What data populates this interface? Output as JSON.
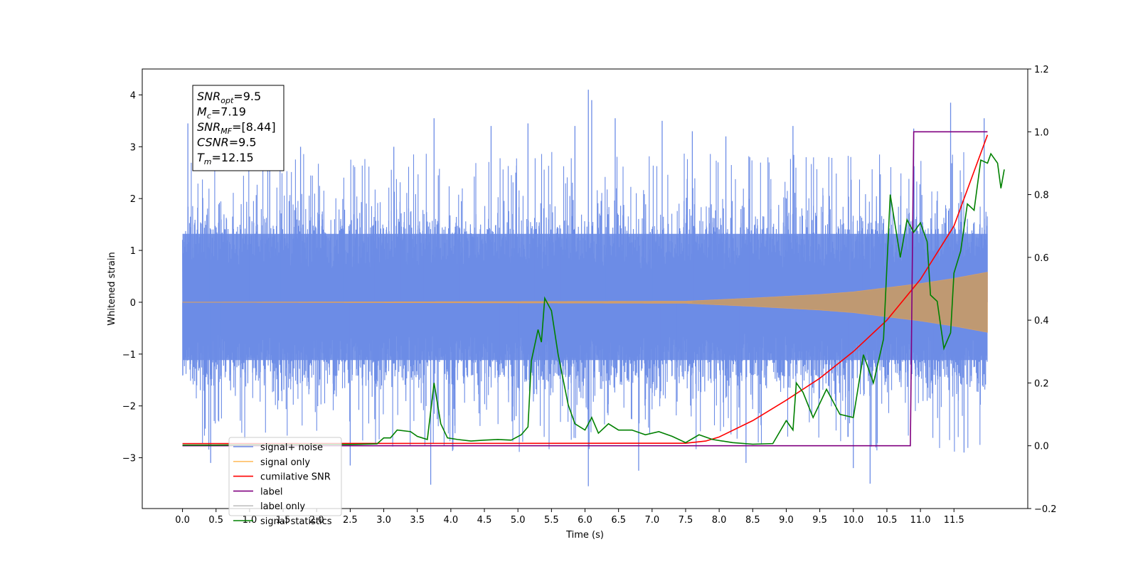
{
  "chart_data": {
    "type": "line",
    "xlabel": "Time (s)",
    "ylabel": "Whitened strain",
    "xlim": [
      -0.6,
      12.6
    ],
    "ylim": [
      -3.98,
      4.5
    ],
    "y2lim": [
      -0.2,
      1.2
    ],
    "x_ticks": [
      "0.0",
      "0.5",
      "1.0",
      "1.5",
      "2.0",
      "2.5",
      "3.0",
      "3.5",
      "4.0",
      "4.5",
      "5.0",
      "5.5",
      "6.0",
      "6.5",
      "7.0",
      "7.5",
      "8.0",
      "8.5",
      "9.0",
      "9.5",
      "10.0",
      "10.5",
      "11.0",
      "11.5"
    ],
    "y_ticks": [
      "−3",
      "−2",
      "−1",
      "0",
      "1",
      "2",
      "3",
      "4"
    ],
    "y2_ticks": [
      "−0.2",
      "0.0",
      "0.2",
      "0.4",
      "0.6",
      "0.8",
      "1.0",
      "1.2"
    ],
    "grid": false,
    "legend_placement": "lower-left",
    "legend": [
      {
        "label": "signal+ noise",
        "color": "#6c8ce6"
      },
      {
        "label": "signal only",
        "color": "#ffbf66"
      },
      {
        "label": "cumilative SNR",
        "color": "#ff0000"
      },
      {
        "label": "label",
        "color": "#800080"
      },
      {
        "label": "label only",
        "color": "#c0c0c0"
      },
      {
        "label": "signal statistics",
        "color": "#008000"
      }
    ],
    "annotation": [
      {
        "base": "SNR",
        "sub": "opt",
        "value": "=9.5"
      },
      {
        "base": "M",
        "sub": "c",
        "value": "=7.19"
      },
      {
        "base": "SNR",
        "sub": "MF",
        "value": "=[8.44]"
      },
      {
        "base": "CSNR",
        "sub": "",
        "value": "=9.5"
      },
      {
        "base": "T",
        "sub": "m",
        "value": "=12.15"
      }
    ],
    "series": [
      {
        "name": "signal+ noise",
        "axis": "left",
        "color": "#6c8ce6",
        "description_range": {
          "x_start": 0.0,
          "x_end": 12.0,
          "typical_low": -1.8,
          "typical_high": 2.4
        },
        "peaks": [
          [
            0.08,
            3.45
          ],
          [
            0.42,
            -3.1
          ],
          [
            1.3,
            3.0
          ],
          [
            1.76,
            3.0
          ],
          [
            2.5,
            -3.15
          ],
          [
            3.15,
            3.0
          ],
          [
            3.75,
            3.55
          ],
          [
            3.7,
            -3.52
          ],
          [
            4.6,
            3.4
          ],
          [
            5.15,
            3.45
          ],
          [
            5.85,
            3.4
          ],
          [
            6.05,
            4.1
          ],
          [
            6.1,
            3.9
          ],
          [
            6.05,
            -3.55
          ],
          [
            6.45,
            3.55
          ],
          [
            6.8,
            -3.25
          ],
          [
            7.15,
            3.5
          ],
          [
            7.6,
            3.3
          ],
          [
            8.1,
            3.2
          ],
          [
            8.4,
            -3.1
          ],
          [
            9.1,
            3.4
          ],
          [
            10.0,
            -3.2
          ],
          [
            10.25,
            -3.5
          ],
          [
            10.9,
            3.35
          ],
          [
            11.45,
            3.85
          ],
          [
            11.65,
            -2.9
          ],
          [
            11.95,
            3.55
          ]
        ]
      },
      {
        "name": "signal only",
        "axis": "left",
        "color": "#ffbf66",
        "envelope": [
          [
            0.0,
            0.0
          ],
          [
            7.5,
            0.02
          ],
          [
            8.5,
            0.08
          ],
          [
            9.5,
            0.15
          ],
          [
            10.0,
            0.2
          ],
          [
            10.5,
            0.28
          ],
          [
            11.0,
            0.36
          ],
          [
            11.5,
            0.46
          ],
          [
            12.0,
            0.58
          ]
        ]
      },
      {
        "name": "cumilative SNR",
        "axis": "right",
        "color": "#ff0000",
        "points": [
          [
            0.0,
            0.007
          ],
          [
            7.5,
            0.008
          ],
          [
            7.8,
            0.015
          ],
          [
            8.0,
            0.028
          ],
          [
            8.5,
            0.08
          ],
          [
            9.0,
            0.145
          ],
          [
            9.5,
            0.215
          ],
          [
            10.0,
            0.3
          ],
          [
            10.5,
            0.4
          ],
          [
            11.0,
            0.53
          ],
          [
            11.5,
            0.7
          ],
          [
            12.0,
            0.99
          ]
        ]
      },
      {
        "name": "label",
        "axis": "right",
        "color": "#800080",
        "points": [
          [
            0.0,
            0.0
          ],
          [
            10.85,
            0.0
          ],
          [
            10.9,
            1.0
          ],
          [
            12.0,
            1.0
          ]
        ]
      },
      {
        "name": "signal statistics",
        "axis": "right",
        "color": "#008000",
        "points": [
          [
            0.0,
            0.002
          ],
          [
            0.5,
            0.002
          ],
          [
            1.0,
            0.003
          ],
          [
            1.5,
            0.003
          ],
          [
            2.0,
            0.004
          ],
          [
            2.5,
            0.004
          ],
          [
            2.9,
            0.006
          ],
          [
            3.0,
            0.025
          ],
          [
            3.1,
            0.025
          ],
          [
            3.2,
            0.05
          ],
          [
            3.4,
            0.045
          ],
          [
            3.5,
            0.03
          ],
          [
            3.65,
            0.02
          ],
          [
            3.75,
            0.2
          ],
          [
            3.85,
            0.07
          ],
          [
            3.95,
            0.025
          ],
          [
            4.1,
            0.02
          ],
          [
            4.3,
            0.015
          ],
          [
            4.5,
            0.018
          ],
          [
            4.7,
            0.02
          ],
          [
            4.9,
            0.018
          ],
          [
            5.05,
            0.035
          ],
          [
            5.15,
            0.06
          ],
          [
            5.2,
            0.27
          ],
          [
            5.3,
            0.37
          ],
          [
            5.35,
            0.33
          ],
          [
            5.4,
            0.47
          ],
          [
            5.5,
            0.43
          ],
          [
            5.6,
            0.29
          ],
          [
            5.75,
            0.13
          ],
          [
            5.85,
            0.07
          ],
          [
            6.0,
            0.05
          ],
          [
            6.1,
            0.09
          ],
          [
            6.2,
            0.04
          ],
          [
            6.35,
            0.07
          ],
          [
            6.5,
            0.05
          ],
          [
            6.7,
            0.05
          ],
          [
            6.9,
            0.035
          ],
          [
            7.1,
            0.045
          ],
          [
            7.3,
            0.03
          ],
          [
            7.5,
            0.01
          ],
          [
            7.7,
            0.035
          ],
          [
            7.9,
            0.02
          ],
          [
            8.2,
            0.01
          ],
          [
            8.5,
            0.005
          ],
          [
            8.8,
            0.007
          ],
          [
            9.0,
            0.08
          ],
          [
            9.1,
            0.05
          ],
          [
            9.15,
            0.2
          ],
          [
            9.25,
            0.17
          ],
          [
            9.4,
            0.09
          ],
          [
            9.6,
            0.18
          ],
          [
            9.8,
            0.1
          ],
          [
            10.0,
            0.09
          ],
          [
            10.15,
            0.29
          ],
          [
            10.3,
            0.2
          ],
          [
            10.45,
            0.34
          ],
          [
            10.55,
            0.8
          ],
          [
            10.7,
            0.6
          ],
          [
            10.8,
            0.72
          ],
          [
            10.9,
            0.68
          ],
          [
            11.0,
            0.71
          ],
          [
            11.1,
            0.65
          ],
          [
            11.15,
            0.48
          ],
          [
            11.25,
            0.46
          ],
          [
            11.35,
            0.31
          ],
          [
            11.45,
            0.36
          ],
          [
            11.5,
            0.55
          ],
          [
            11.6,
            0.62
          ],
          [
            11.7,
            0.77
          ],
          [
            11.8,
            0.75
          ],
          [
            11.9,
            0.91
          ],
          [
            12.0,
            0.9
          ],
          [
            12.05,
            0.93
          ],
          [
            12.15,
            0.9
          ],
          [
            12.2,
            0.82
          ],
          [
            12.25,
            0.88
          ]
        ]
      }
    ]
  }
}
